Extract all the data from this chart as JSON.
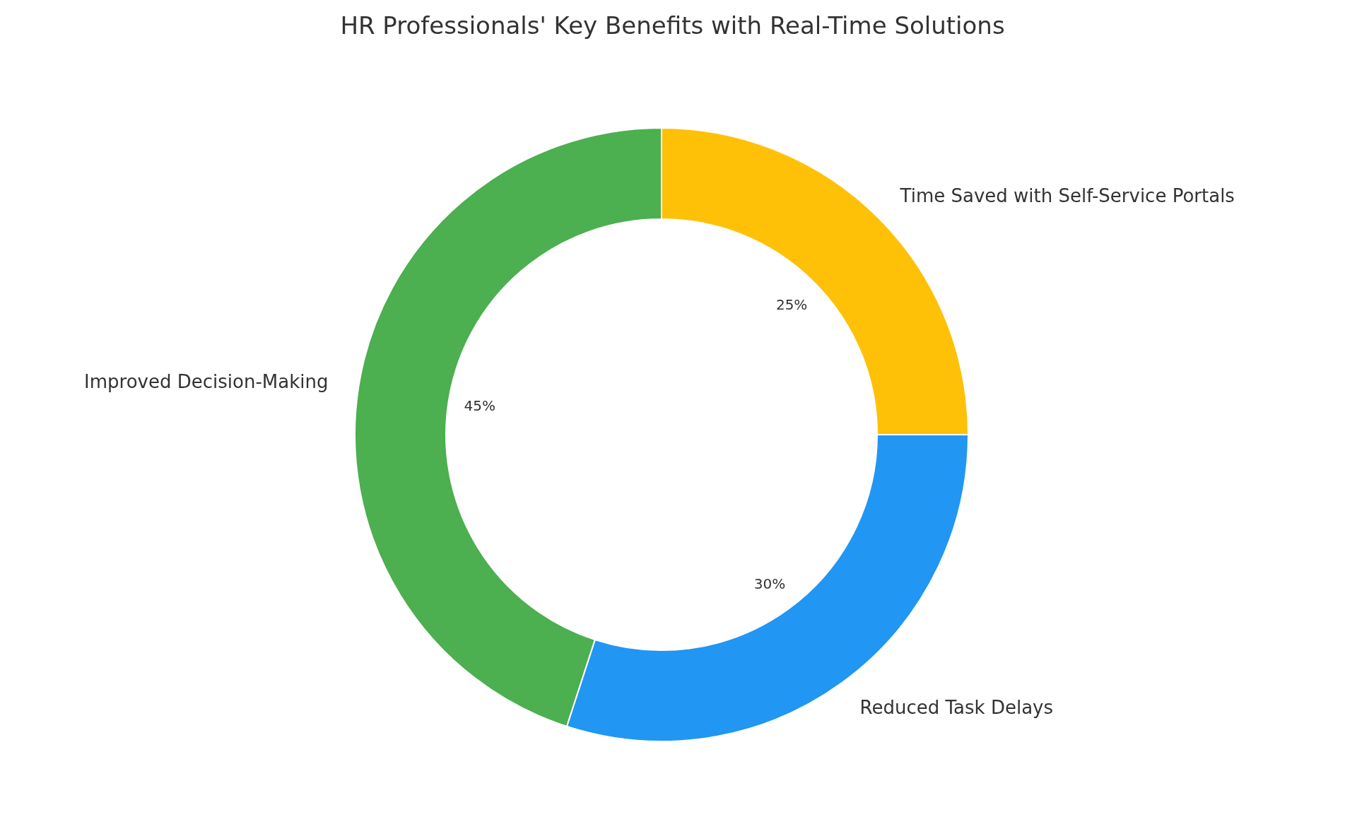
{
  "chart_data": {
    "type": "donut",
    "title": "HR Professionals' Key Benefits with Real-Time Solutions",
    "categories": [
      "Time Saved with Self-Service Portals",
      "Reduced Task Delays",
      "Improved Decision-Making"
    ],
    "values": [
      25,
      30,
      45
    ],
    "colors": [
      "#ffc107",
      "#2196f3",
      "#4caf50"
    ],
    "value_labels": [
      "25%",
      "30%",
      "45%"
    ]
  }
}
